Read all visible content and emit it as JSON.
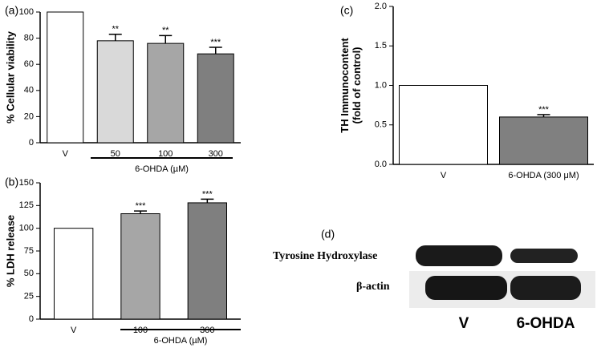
{
  "chart_data": [
    {
      "type": "bar",
      "panel_label": "(a)",
      "ylabel": [
        "% Cellular viability"
      ],
      "categories": [
        "V",
        "50",
        "100",
        "300"
      ],
      "values": [
        100,
        78,
        76,
        68
      ],
      "errors": [
        null,
        5,
        6,
        5
      ],
      "significance": [
        null,
        "**",
        "**",
        "***"
      ],
      "colors": [
        "#ffffff",
        "#d9d9d9",
        "#a6a6a6",
        "#7f7f7f"
      ],
      "group_label": "6-OHDA (µM)",
      "ylim": [
        0,
        100
      ],
      "yticks": [
        0,
        20,
        40,
        60,
        80,
        100
      ]
    },
    {
      "type": "bar",
      "panel_label": "(b)",
      "ylabel": [
        "% LDH release"
      ],
      "categories": [
        "V",
        "100",
        "300"
      ],
      "values": [
        100,
        116,
        128
      ],
      "errors": [
        null,
        3,
        4
      ],
      "significance": [
        null,
        "***",
        "***"
      ],
      "colors": [
        "#ffffff",
        "#a6a6a6",
        "#7f7f7f"
      ],
      "group_label": "6-OHDA (µM)",
      "ylim": [
        0,
        150
      ],
      "yticks": [
        0,
        25,
        50,
        75,
        100,
        125,
        150
      ]
    },
    {
      "type": "bar",
      "panel_label": "(c)",
      "ylabel": [
        "TH Immunocontent",
        "(fold of control)"
      ],
      "categories": [
        "V",
        "6-OHDA (300 μM)"
      ],
      "values": [
        1.0,
        0.6
      ],
      "errors": [
        null,
        0.03
      ],
      "significance": [
        null,
        "***"
      ],
      "colors": [
        "#ffffff",
        "#808080"
      ],
      "ylim": [
        0,
        2
      ],
      "yticks": [
        {
          "value": 0,
          "label": "0.0"
        },
        0.5,
        {
          "value": 1,
          "label": "1.0"
        },
        1.5,
        {
          "value": 2,
          "label": "2.0"
        }
      ]
    }
  ],
  "blot": {
    "panel_label": "(d)",
    "rows": [
      "Tyrosine Hydroxylase",
      "β-actin"
    ],
    "lanes": [
      "V",
      "6-OHDA"
    ]
  }
}
